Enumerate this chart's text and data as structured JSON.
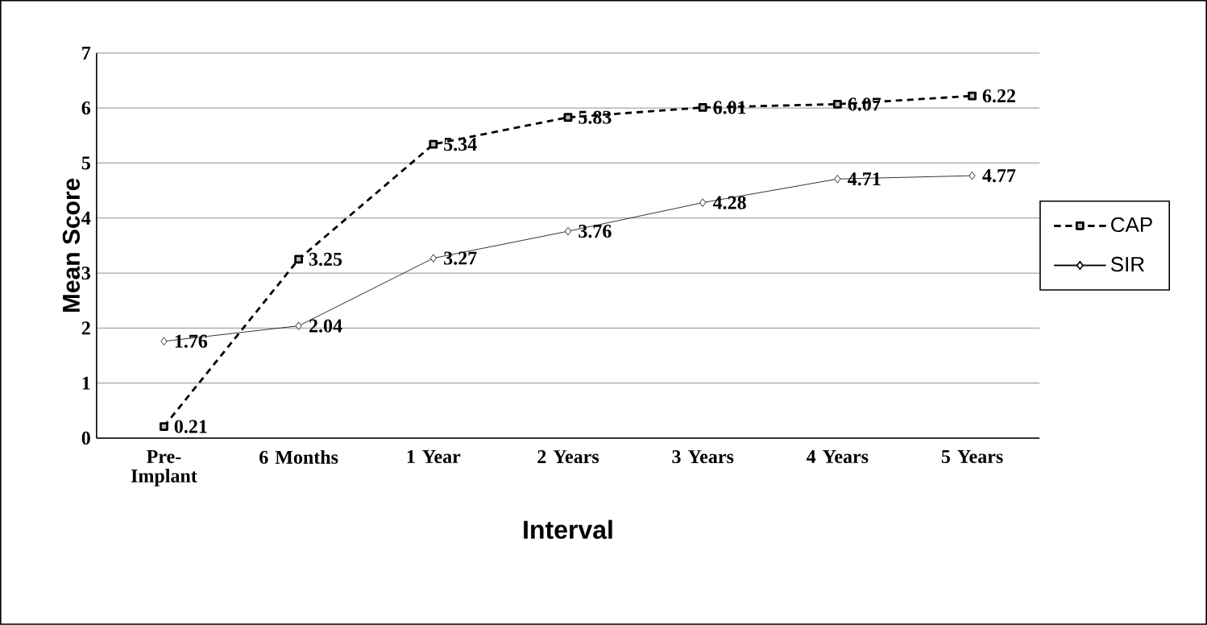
{
  "chart_data": {
    "type": "line",
    "xlabel": "Interval",
    "ylabel": "Mean Score",
    "categories": [
      "Pre-Implant",
      "6 Months",
      "1 Year",
      "2 Years",
      "3 Years",
      "4 Years",
      "5 Years"
    ],
    "series": [
      {
        "name": "CAP",
        "color": "#000000",
        "marker": "square",
        "line_style": "dashed",
        "values": [
          0.21,
          3.25,
          5.34,
          5.83,
          6.01,
          6.07,
          6.22
        ]
      },
      {
        "name": "SIR",
        "color": "#000000",
        "marker": "diamond",
        "line_style": "solid",
        "values": [
          1.76,
          2.04,
          3.27,
          3.76,
          4.28,
          4.71,
          4.77
        ]
      }
    ],
    "ylim": [
      0,
      7
    ],
    "yticks": [
      0,
      1,
      2,
      3,
      4,
      5,
      6,
      7
    ],
    "grid": "y",
    "legend": "right",
    "data_labels": true
  }
}
